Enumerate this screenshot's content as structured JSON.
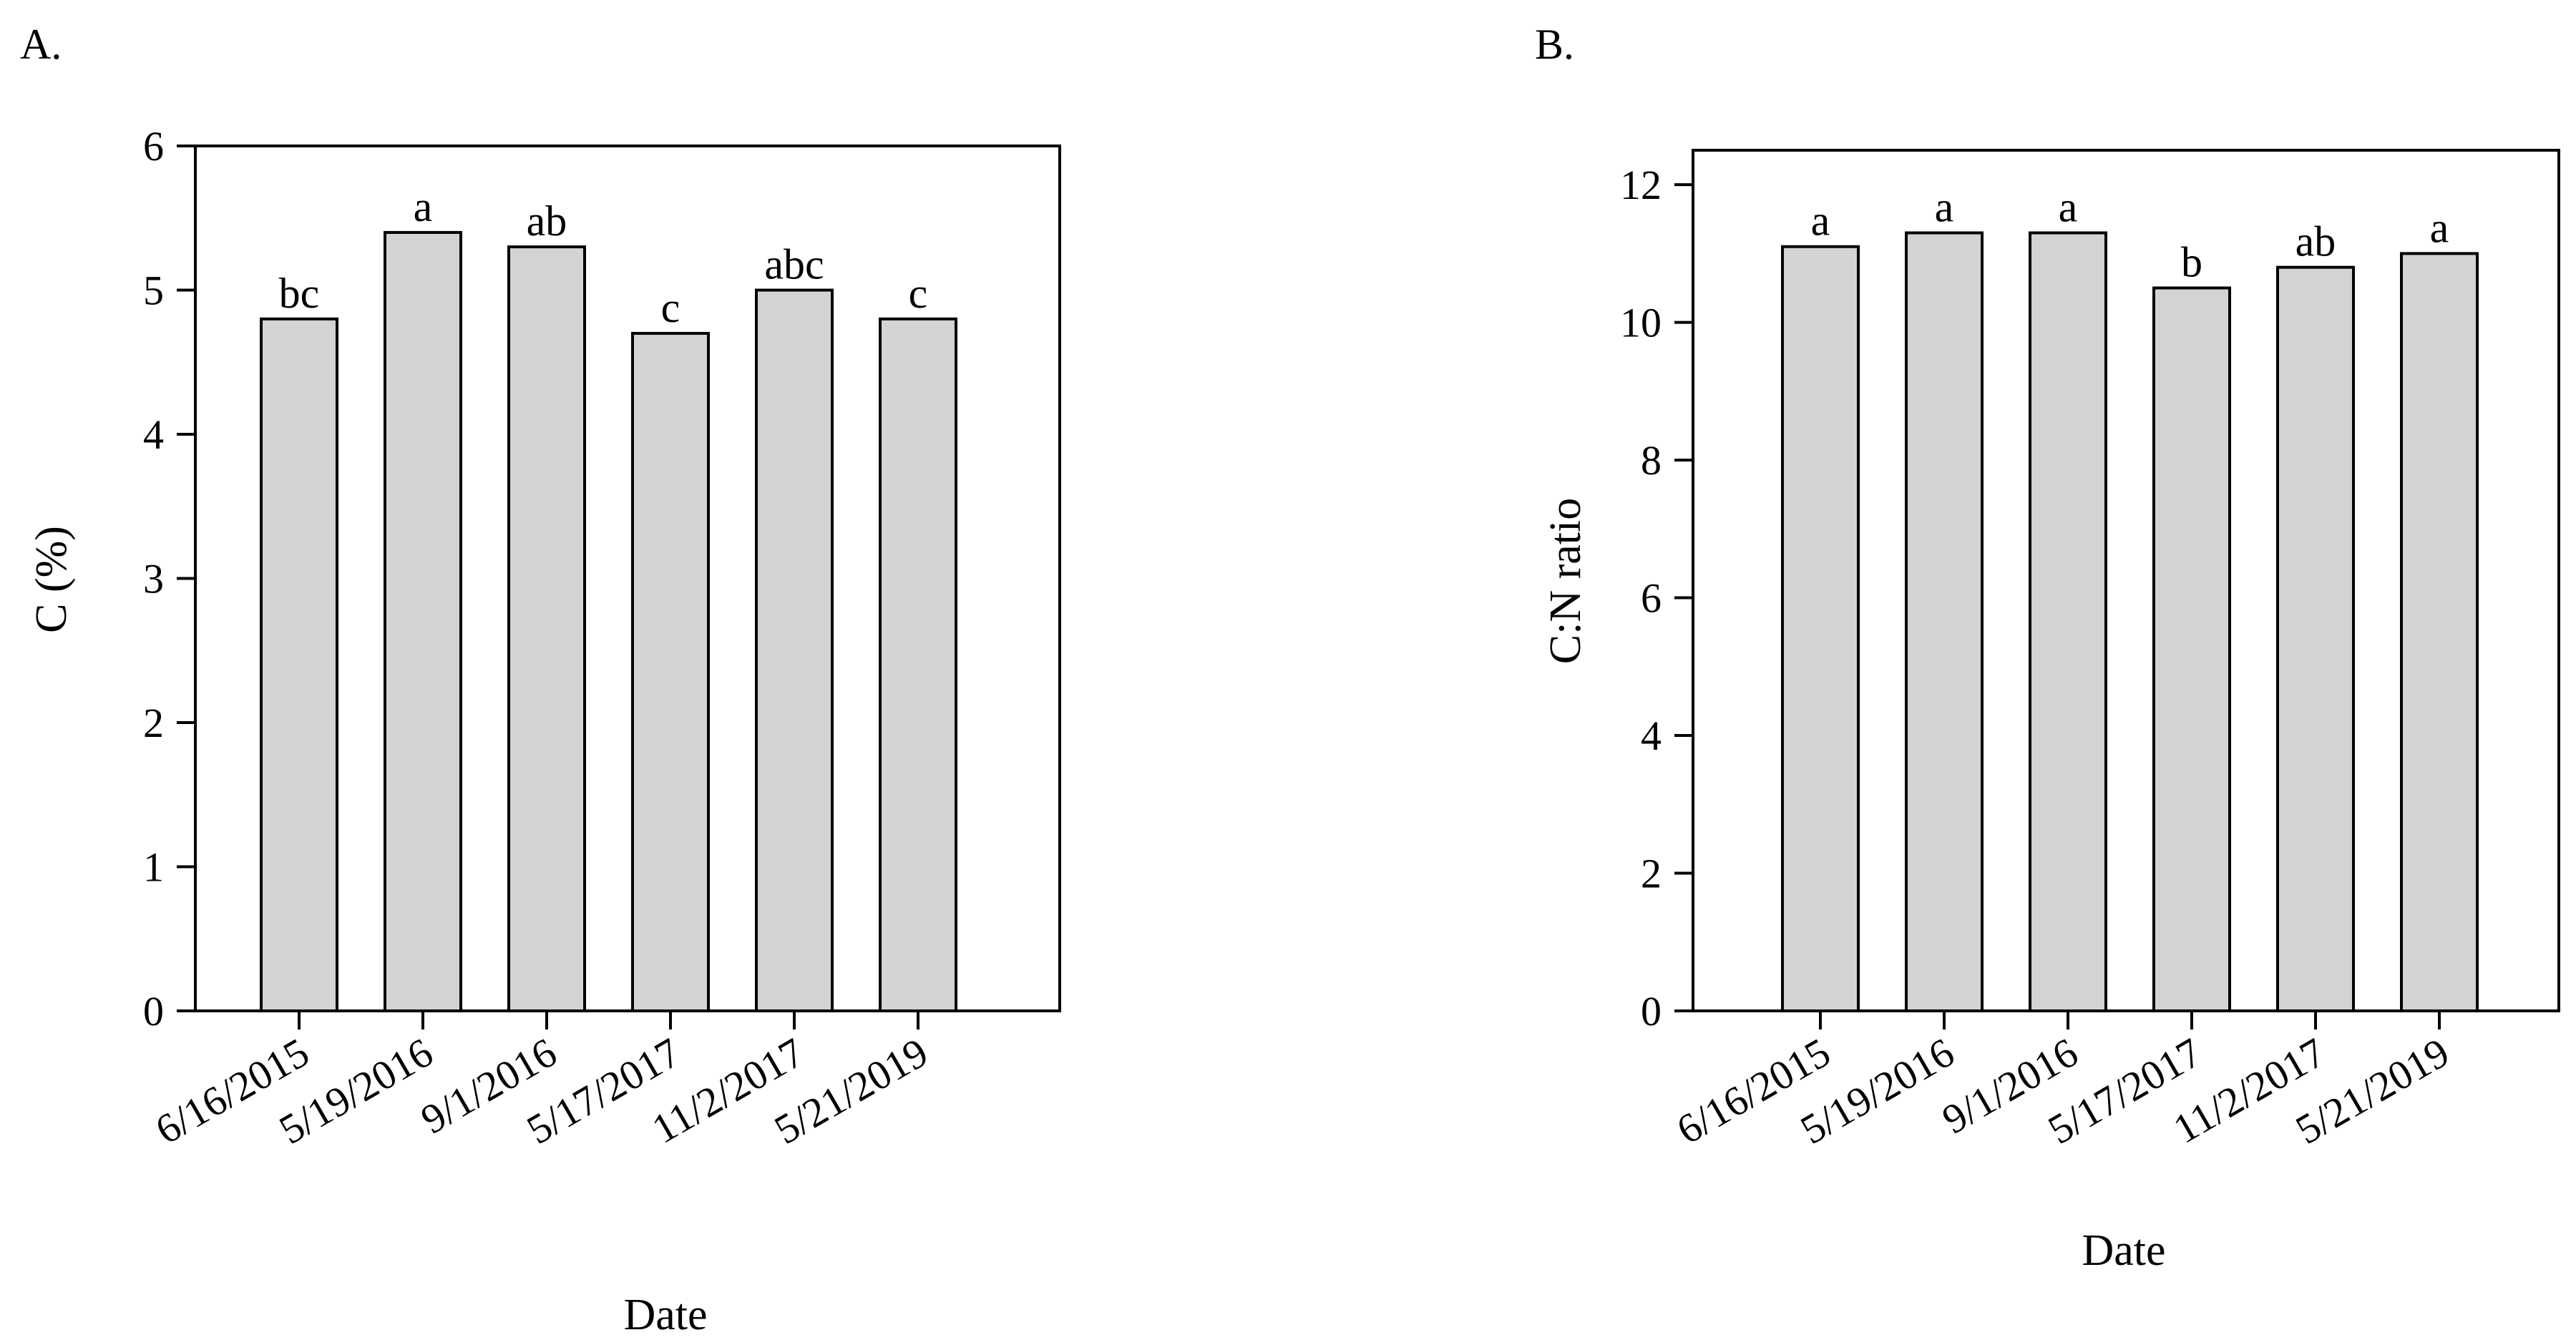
{
  "figure": {
    "colors": {
      "bar_fill": "#d3d3d3",
      "stroke": "#000000",
      "background": "#ffffff"
    }
  },
  "chart_data": [
    {
      "panel": "A.",
      "type": "bar",
      "categories": [
        "6/16/2015",
        "5/19/2016",
        "9/1/2016",
        "5/17/2017",
        "11/2/2017",
        "5/21/2019"
      ],
      "values": [
        4.8,
        5.4,
        5.3,
        4.7,
        5.0,
        4.8
      ],
      "significance_letters": [
        "bc",
        "a",
        "ab",
        "c",
        "abc",
        "c"
      ],
      "xlabel": "Date",
      "ylabel": "C (%)",
      "ylim": [
        0,
        6
      ],
      "yticks": [
        0,
        1,
        2,
        3,
        4,
        5,
        6
      ],
      "grid": false
    },
    {
      "panel": "B.",
      "type": "bar",
      "categories": [
        "6/16/2015",
        "5/19/2016",
        "9/1/2016",
        "5/17/2017",
        "11/2/2017",
        "5/21/2019"
      ],
      "values": [
        11.1,
        11.3,
        11.3,
        10.5,
        10.8,
        11.0
      ],
      "significance_letters": [
        "a",
        "a",
        "a",
        "b",
        "ab",
        "a"
      ],
      "xlabel": "Date",
      "ylabel": "C:N ratio",
      "ylim": [
        0,
        12.5
      ],
      "yticks": [
        0,
        2,
        4,
        6,
        8,
        10,
        12
      ],
      "grid": false
    }
  ]
}
